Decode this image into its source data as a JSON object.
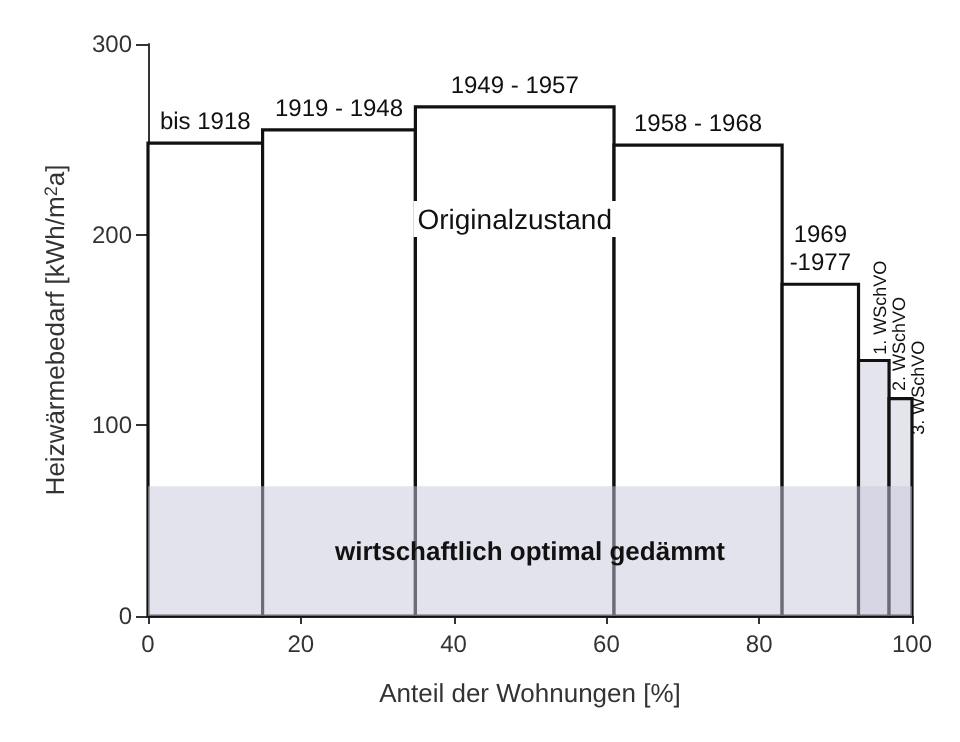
{
  "chart_data": {
    "type": "histogram",
    "xlabel": "Anteil der Wohnungen [%]",
    "ylabel": "Heizwärmebedarf [kWh/m$^{2}$a]",
    "bins": [
      0,
      15,
      35,
      61,
      83,
      93,
      97,
      100
    ],
    "values": [
      248,
      255,
      267,
      247,
      174,
      134,
      114
    ],
    "colors": [
      "#ffffff",
      "#ffffff",
      "#ffffff",
      "#ffffff",
      "#ffffff",
      "#e4e4ec",
      "#e4e4ec"
    ],
    "xlim": [
      0,
      100
    ],
    "xticks": [
      0,
      20,
      40,
      60,
      80,
      100
    ],
    "ylim": [
      0,
      300
    ],
    "yticks": [
      0,
      100,
      200,
      300
    ],
    "grid": false,
    "bands": [
      {
        "axis": "y",
        "from": 0,
        "to": 68,
        "label": "wirtschaftlich optimal gedämmt",
        "color": "#c8c8dc"
      }
    ],
    "annotations": [
      {
        "text": "bis 1918",
        "x": 7.5,
        "y": 250
      },
      {
        "text": "1919 - 1948",
        "x": 25,
        "y": 257
      },
      {
        "text": "1949 - 1957",
        "x": 48,
        "y": 269
      },
      {
        "text": "1958 - 1968",
        "x": 72,
        "y": 249
      },
      {
        "text": "1969\n-1977",
        "x": 88,
        "y": 176
      },
      "Originalzustand",
      {
        "text": "1. WSchVO",
        "x": 95,
        "y": 137
      },
      {
        "text": "2. WSchVO",
        "x": 97.5,
        "y": 118
      },
      {
        "text": "3. WSchVO",
        "x": 100,
        "y": 95
      }
    ]
  }
}
